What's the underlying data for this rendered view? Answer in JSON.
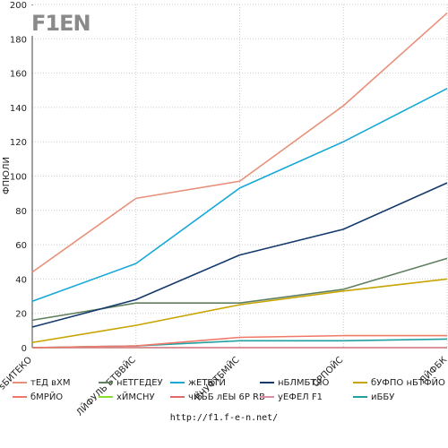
{
  "logo_text": "F1EN",
  "source_url": "http://f1.f-e-n.net/",
  "chart_data": {
    "type": "line",
    "ylabel": "ФПЮЛИ",
    "ylim": [
      0,
      200
    ],
    "yticks": [
      0,
      20,
      40,
      60,
      80,
      100,
      120,
      140,
      160,
      180,
      200
    ],
    "categories": [
      "ѕБИТЕКО",
      "ЛЙФУЛЬ БТВВЙС",
      "БЧУФТБМЙС",
      "СРПОЙС",
      "ЛЙФБК"
    ],
    "grid": true,
    "legend_position": "bottom",
    "series": [
      {
        "name": "тЕД вХМ",
        "color": "#e8907a",
        "values": [
          44,
          87,
          97,
          141,
          195
        ]
      },
      {
        "name": "нЕТГЕДЕУ",
        "color": "#5f7f5f",
        "values": [
          16,
          26,
          26,
          34,
          52
        ]
      },
      {
        "name": "жЕТБТЙ",
        "color": "#16a8d8",
        "values": [
          27,
          49,
          93,
          120,
          151
        ]
      },
      {
        "name": "нБЛМБТЯО",
        "color": "#143a6b",
        "values": [
          12,
          28,
          54,
          69,
          96
        ]
      },
      {
        "name": "бУФПО нБТФЙО",
        "color": "#c8a400",
        "values": [
          3,
          13,
          25,
          33,
          40
        ]
      },
      {
        "name": "бМРЙО",
        "color": "#f07868",
        "values": [
          0,
          1,
          6,
          7,
          7
        ]
      },
      {
        "name": "хЙМСНУ",
        "color": "#86e02a",
        "values": [
          0,
          0,
          0,
          0,
          0
        ]
      },
      {
        "name": "чЙЪБ лЕЫ 6Р RB",
        "color": "#e06a6a",
        "values": [
          0,
          0,
          0,
          0,
          0
        ]
      },
      {
        "name": "уЕФЕЛ F1",
        "color": "#dc8ca0",
        "values": [
          0,
          0,
          0,
          0,
          0
        ]
      },
      {
        "name": "иББУ",
        "color": "#20a0a0",
        "values": [
          0,
          1,
          4,
          4,
          5
        ]
      }
    ]
  }
}
